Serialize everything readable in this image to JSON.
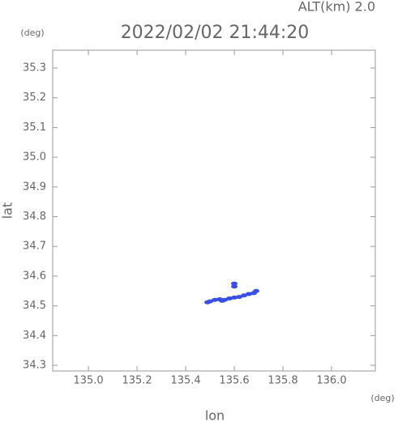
{
  "chart_data": {
    "type": "scatter",
    "title": "2022/02/02 21:44:20",
    "subtitle": "ALT(km) 2.0",
    "x_label": "lon",
    "y_label": "lat",
    "x_unit": "(deg)",
    "y_unit": "(deg)",
    "color": "#3a4fe6",
    "x": [
      135.49,
      135.5,
      135.52,
      135.54,
      135.55,
      135.56,
      135.58,
      135.6,
      135.62,
      135.64,
      135.66,
      135.68,
      135.69,
      135.6,
      135.6
    ],
    "y": [
      34.512,
      34.515,
      34.52,
      34.522,
      34.517,
      34.52,
      34.525,
      34.528,
      34.53,
      34.535,
      34.54,
      34.543,
      34.55,
      34.565,
      34.575
    ],
    "xlim": [
      134.853,
      136.18
    ],
    "ylim": [
      34.281,
      35.36
    ],
    "xticks": [
      {
        "value": 135.0,
        "label": "135.0"
      },
      135.2,
      135.4,
      135.6,
      135.8,
      {
        "value": 136.0,
        "label": "136.0"
      }
    ],
    "yticks": [
      34.3,
      34.4,
      34.5,
      34.6,
      34.7,
      34.8,
      34.9,
      {
        "value": 35.0,
        "label": "35.0"
      },
      35.1,
      35.2,
      35.3
    ]
  }
}
